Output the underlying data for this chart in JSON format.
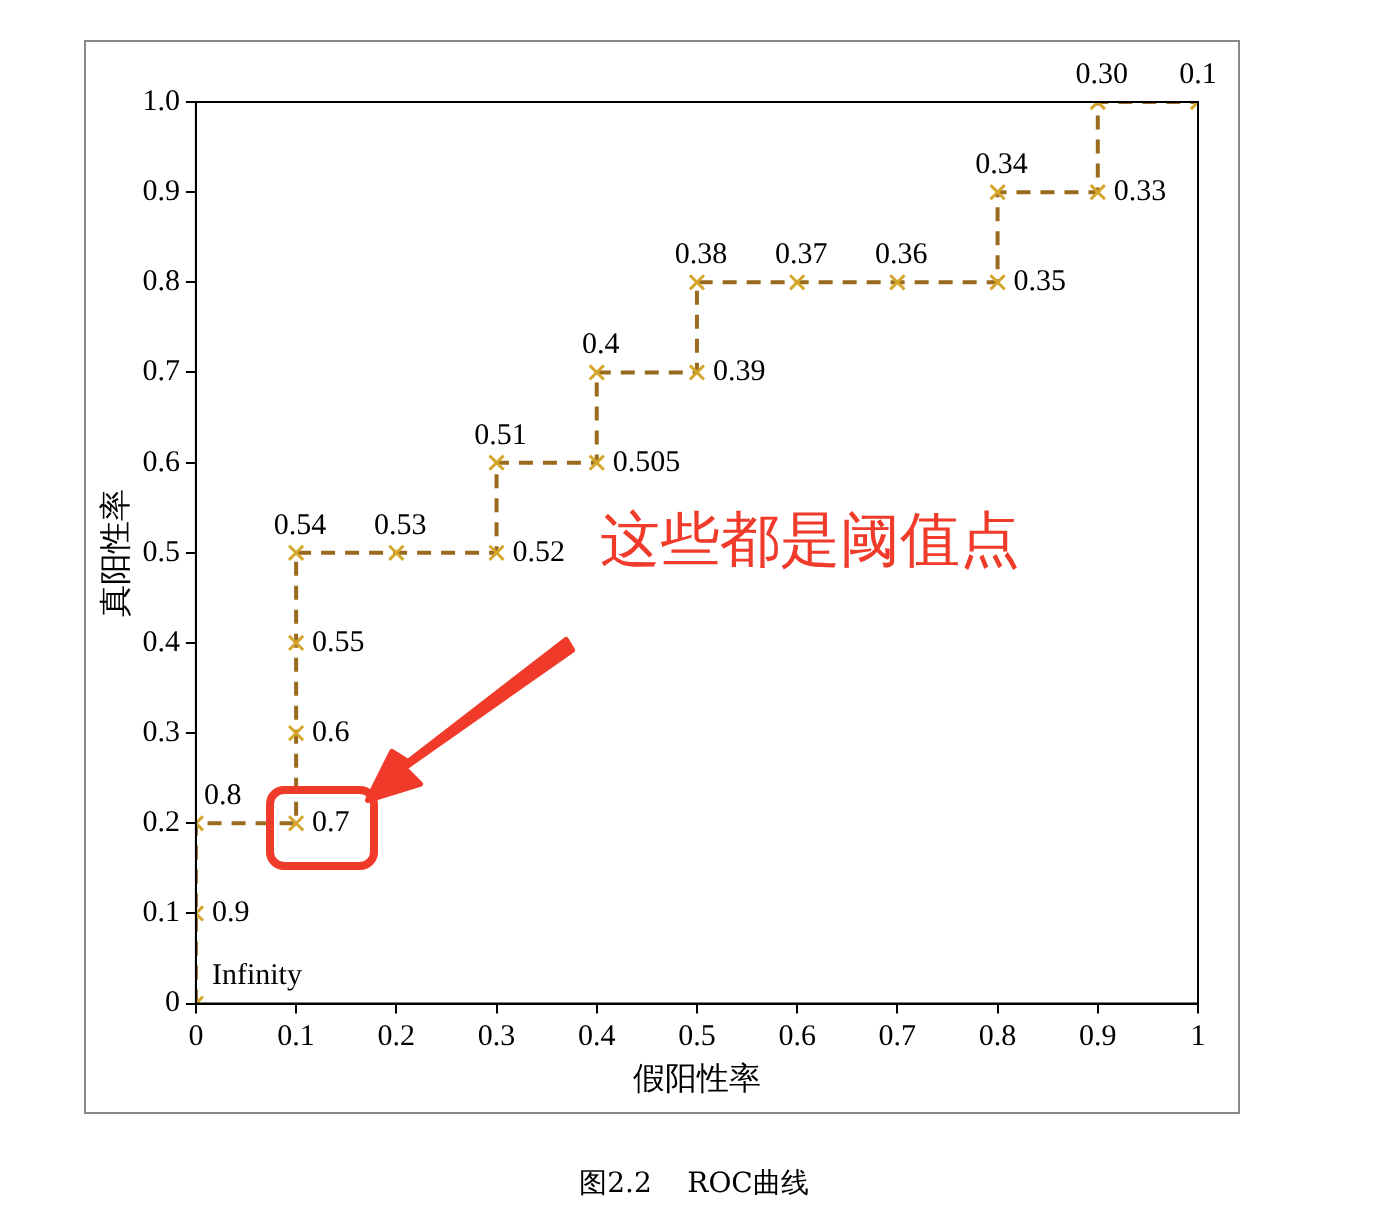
{
  "chart_data": {
    "type": "line",
    "xlabel": "假阳性率",
    "ylabel": "真阳性率",
    "x": [
      0,
      0,
      0,
      0.1,
      0.1,
      0.1,
      0.1,
      0.2,
      0.3,
      0.3,
      0.4,
      0.4,
      0.5,
      0.5,
      0.6,
      0.7,
      0.8,
      0.8,
      0.9,
      0.9,
      1
    ],
    "series": [
      {
        "color": "#9a6a1e",
        "values": [
          0,
          0.1,
          0.2,
          0.2,
          0.3,
          0.4,
          0.5,
          0.5,
          0.5,
          0.6,
          0.6,
          0.7,
          0.7,
          0.8,
          0.8,
          0.8,
          0.8,
          0.9,
          0.9,
          1,
          1
        ]
      }
    ],
    "xlim": [
      0,
      1
    ],
    "ylim": [
      0,
      1
    ],
    "xticks": [
      0,
      0.1,
      0.2,
      0.3,
      0.4,
      0.5,
      0.6,
      0.7,
      0.8,
      0.9,
      1
    ],
    "yticks": [
      0,
      0.1,
      0.2,
      0.3,
      0.4,
      0.5,
      0.6,
      0.7,
      0.8,
      0.9,
      {
        "value": 1,
        "label": "1.0"
      }
    ],
    "grid": false,
    "legend": false,
    "marker": "cross",
    "line_style": "dashed",
    "annotations": [
      {
        "text": "Infinity",
        "x": 0,
        "y": 0
      },
      {
        "text": "0.9",
        "x": 0,
        "y": 0.1
      },
      {
        "text": "0.8",
        "x": 0,
        "y": 0.2
      },
      {
        "text": "0.7",
        "x": 0.1,
        "y": 0.2
      },
      {
        "text": "0.6",
        "x": 0.1,
        "y": 0.3
      },
      {
        "text": "0.55",
        "x": 0.1,
        "y": 0.4
      },
      {
        "text": "0.54",
        "x": 0.1,
        "y": 0.5
      },
      {
        "text": "0.53",
        "x": 0.2,
        "y": 0.5
      },
      {
        "text": "0.52",
        "x": 0.3,
        "y": 0.5
      },
      {
        "text": "0.51",
        "x": 0.3,
        "y": 0.6
      },
      {
        "text": "0.505",
        "x": 0.4,
        "y": 0.6
      },
      {
        "text": "0.4",
        "x": 0.4,
        "y": 0.7
      },
      {
        "text": "0.39",
        "x": 0.5,
        "y": 0.7
      },
      {
        "text": "0.38",
        "x": 0.5,
        "y": 0.8
      },
      {
        "text": "0.37",
        "x": 0.6,
        "y": 0.8
      },
      {
        "text": "0.36",
        "x": 0.7,
        "y": 0.8
      },
      {
        "text": "0.35",
        "x": 0.8,
        "y": 0.8
      },
      {
        "text": "0.34",
        "x": 0.8,
        "y": 0.9
      },
      {
        "text": "0.33",
        "x": 0.9,
        "y": 0.9
      },
      {
        "text": "0.30",
        "x": 0.9,
        "y": 1
      },
      {
        "text": "0.1",
        "x": 1,
        "y": 1
      },
      "这些都是阈值点",
      "图2.2    ROC曲线"
    ]
  }
}
